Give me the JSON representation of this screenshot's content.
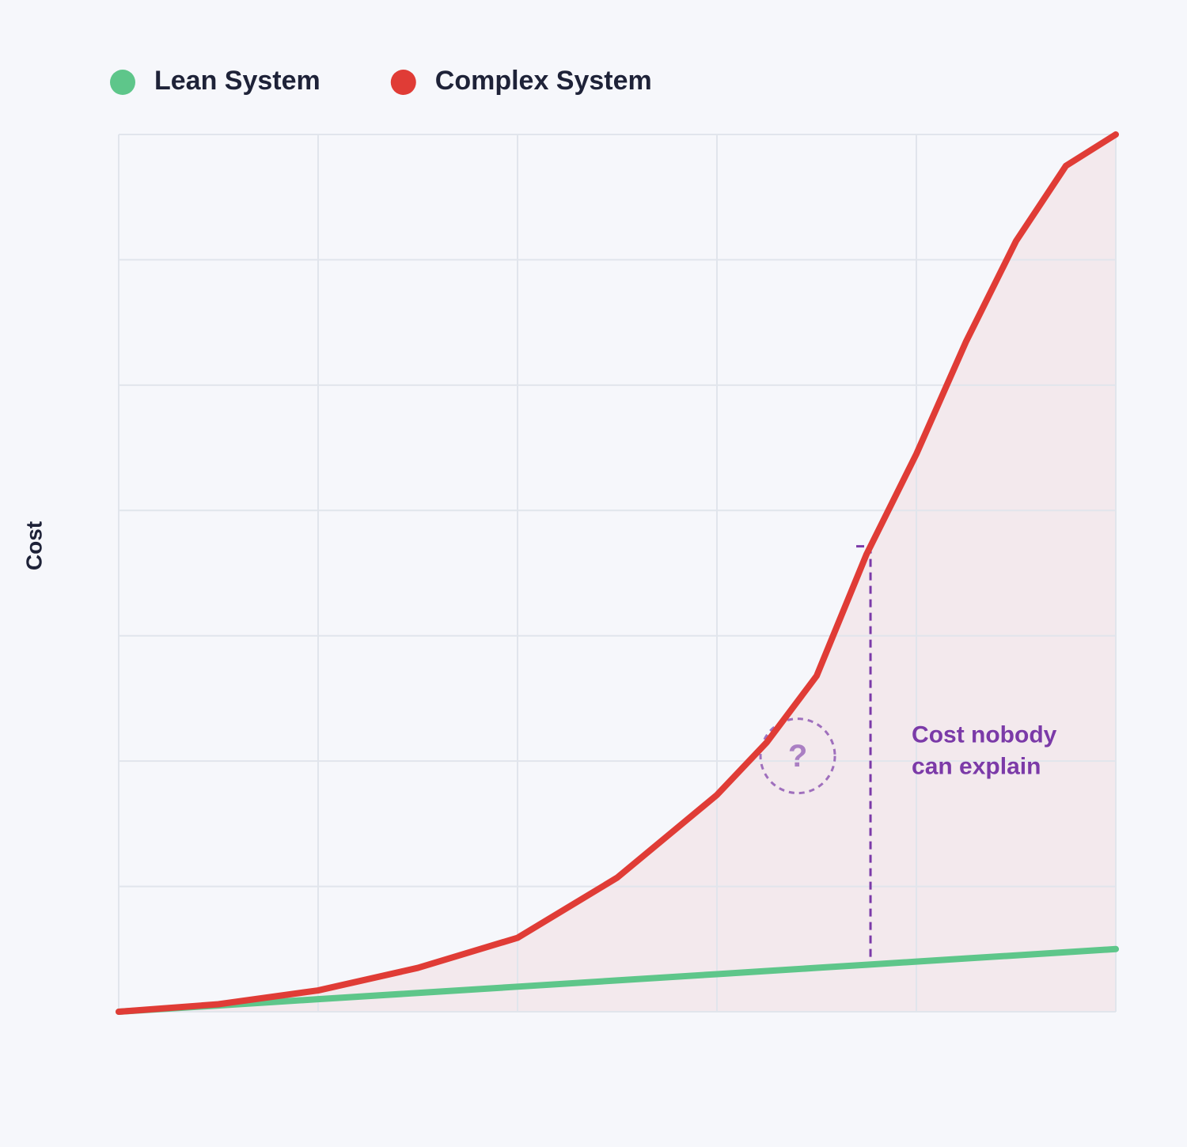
{
  "chart_data": {
    "type": "line",
    "y_label": "Cost",
    "x": [
      0,
      0.5,
      1,
      1.5,
      2,
      2.5,
      3,
      3.25,
      3.5,
      3.75,
      4,
      4.25,
      4.5,
      4.75,
      5
    ],
    "series": [
      {
        "name": "Lean System",
        "color": "#5ec68a",
        "values": [
          0,
          0.05,
          0.1,
          0.15,
          0.2,
          0.25,
          0.3,
          0.325,
          0.35,
          0.375,
          0.4,
          0.425,
          0.45,
          0.475,
          0.5
        ]
      },
      {
        "name": "Complex System",
        "color": "#e03c36",
        "fill": "#f3e9ed",
        "values": [
          0,
          0.06,
          0.17,
          0.35,
          0.59,
          1.07,
          1.73,
          2.15,
          2.68,
          3.65,
          4.45,
          5.35,
          6.15,
          6.75,
          7
        ]
      }
    ],
    "xlim": [
      0,
      5
    ],
    "ylim": [
      0,
      7
    ],
    "xticks": [
      0,
      1,
      2,
      3,
      4,
      5
    ],
    "yticks": [
      0,
      1,
      2,
      3,
      4,
      5,
      6,
      7
    ],
    "grid": true,
    "legend": "top-left",
    "annotation": {
      "x": 3.77,
      "symbol": "?",
      "lines": [
        "Cost nobody",
        "can explain"
      ],
      "color": "#7b3aa8"
    }
  }
}
